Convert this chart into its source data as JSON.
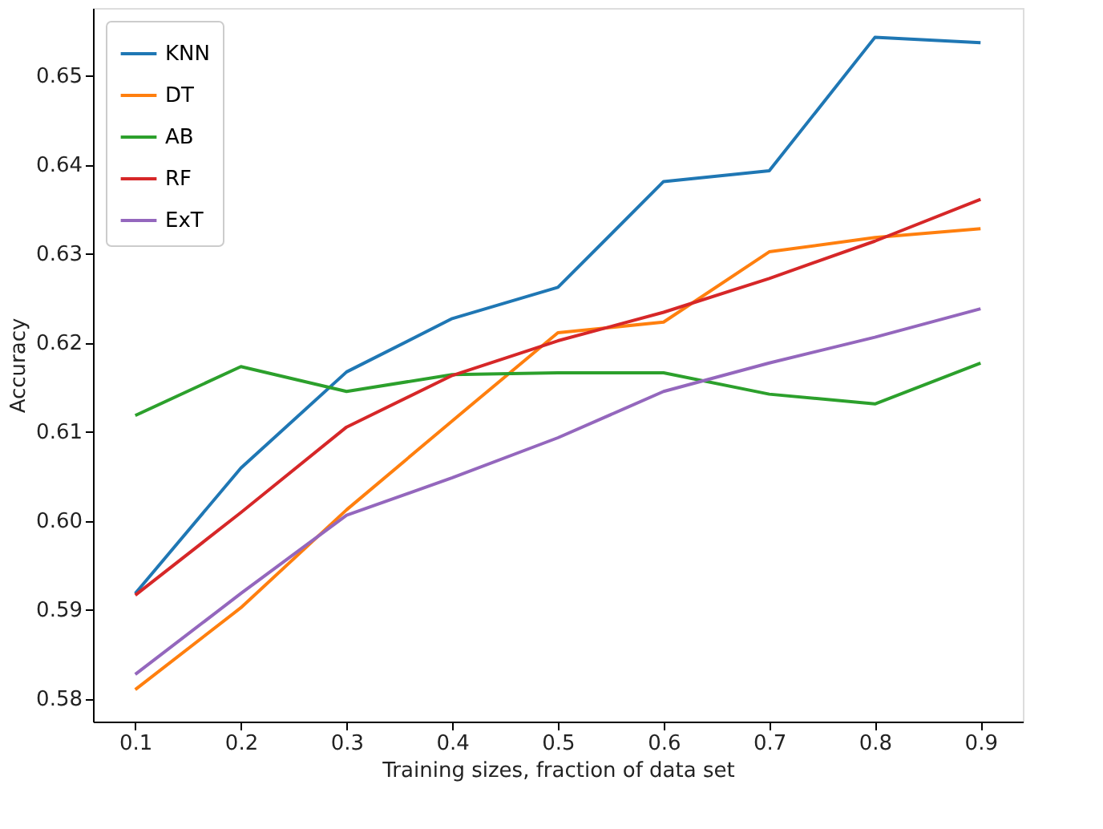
{
  "chart_data": {
    "type": "line",
    "xlabel": "Training sizes, fraction of data set",
    "ylabel": "Accuracy",
    "x": [
      0.1,
      0.2,
      0.3,
      0.4,
      0.5,
      0.6,
      0.7,
      0.8,
      0.9
    ],
    "series": [
      {
        "name": "KNN",
        "color": "#1f77b4",
        "values": [
          0.5918,
          0.6059,
          0.6167,
          0.6227,
          0.6262,
          0.6381,
          0.6393,
          0.6543,
          0.6537
        ]
      },
      {
        "name": "DT",
        "color": "#ff7f0e",
        "values": [
          0.581,
          0.5902,
          0.6012,
          0.6112,
          0.6211,
          0.6223,
          0.6302,
          0.6318,
          0.6328
        ]
      },
      {
        "name": "AB",
        "color": "#2ca02c",
        "values": [
          0.6118,
          0.6173,
          0.6145,
          0.6164,
          0.6166,
          0.6166,
          0.6142,
          0.6131,
          0.6177
        ]
      },
      {
        "name": "RF",
        "color": "#d62728",
        "values": [
          0.5916,
          0.6009,
          0.6105,
          0.6163,
          0.6202,
          0.6234,
          0.6272,
          0.6314,
          0.6361
        ]
      },
      {
        "name": "ExT",
        "color": "#9467bd",
        "values": [
          0.5827,
          0.5918,
          0.6006,
          0.6048,
          0.6093,
          0.6145,
          0.6177,
          0.6206,
          0.6238
        ]
      }
    ],
    "xlim": [
      0.06,
      0.94
    ],
    "ylim": [
      0.5774,
      0.6576
    ],
    "xticks": [
      0.1,
      0.2,
      0.3,
      0.4,
      0.5,
      0.6,
      0.7,
      0.8,
      0.9
    ],
    "yticks": [
      0.58,
      0.59,
      {
        "value": 0.6,
        "label": "0.60"
      },
      0.61,
      0.62,
      0.63,
      0.64,
      0.65
    ],
    "grid": false,
    "legend": "top left",
    "marker": "none",
    "line_style": "solid"
  }
}
